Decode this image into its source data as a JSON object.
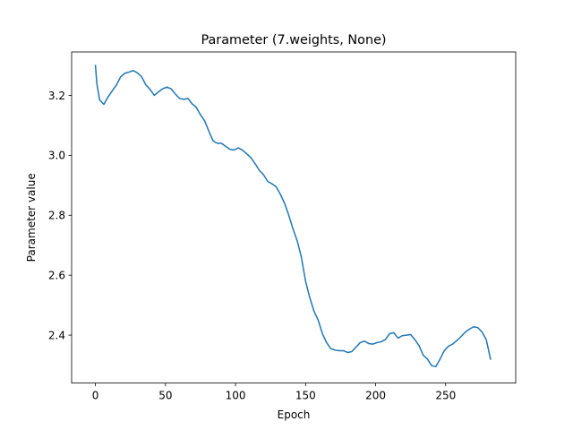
{
  "chart_data": {
    "type": "line",
    "title": "Parameter (7.weights, None)",
    "xlabel": "Epoch",
    "ylabel": "Parameter value",
    "xlim": [
      -17,
      300
    ],
    "ylim": [
      2.24,
      3.345
    ],
    "xticks": [
      0,
      50,
      100,
      150,
      200,
      250
    ],
    "yticks": [
      2.4,
      2.6,
      2.8,
      3.0,
      3.2
    ],
    "xtick_labels": [
      "0",
      "50",
      "100",
      "150",
      "200",
      "250"
    ],
    "ytick_labels": [
      "2.4",
      "2.6",
      "2.8",
      "3.0",
      "3.2"
    ],
    "grid": false,
    "series": [
      {
        "color": "#1f77b4",
        "x": [
          0,
          1,
          3,
          6,
          9,
          12,
          15,
          18,
          21,
          24,
          27,
          30,
          33,
          36,
          39,
          42,
          45,
          48,
          51,
          54,
          57,
          60,
          63,
          66,
          69,
          72,
          75,
          78,
          81,
          84,
          87,
          90,
          93,
          96,
          99,
          102,
          105,
          108,
          111,
          114,
          117,
          120,
          123,
          126,
          129,
          132,
          135,
          138,
          141,
          144,
          147,
          150,
          153,
          156,
          159,
          162,
          165,
          168,
          171,
          174,
          177,
          180,
          183,
          186,
          189,
          192,
          195,
          198,
          201,
          204,
          207,
          210,
          213,
          216,
          219,
          222,
          225,
          228,
          231,
          234,
          237,
          240,
          243,
          246,
          249,
          252,
          255,
          258,
          261,
          264,
          267,
          270,
          273,
          276,
          279,
          282
        ],
        "values": [
          3.3,
          3.24,
          3.185,
          3.17,
          3.195,
          3.215,
          3.235,
          3.262,
          3.274,
          3.278,
          3.283,
          3.275,
          3.262,
          3.235,
          3.22,
          3.2,
          3.212,
          3.222,
          3.228,
          3.222,
          3.205,
          3.19,
          3.187,
          3.19,
          3.172,
          3.16,
          3.135,
          3.115,
          3.08,
          3.048,
          3.04,
          3.04,
          3.03,
          3.02,
          3.018,
          3.025,
          3.017,
          3.005,
          2.992,
          2.972,
          2.95,
          2.935,
          2.913,
          2.905,
          2.895,
          2.87,
          2.84,
          2.8,
          2.755,
          2.715,
          2.66,
          2.58,
          2.525,
          2.48,
          2.45,
          2.405,
          2.375,
          2.355,
          2.35,
          2.348,
          2.348,
          2.342,
          2.345,
          2.36,
          2.375,
          2.38,
          2.372,
          2.37,
          2.375,
          2.378,
          2.385,
          2.405,
          2.408,
          2.39,
          2.398,
          2.4,
          2.402,
          2.385,
          2.365,
          2.333,
          2.32,
          2.298,
          2.295,
          2.32,
          2.348,
          2.363,
          2.37,
          2.382,
          2.395,
          2.41,
          2.42,
          2.428,
          2.425,
          2.41,
          2.385,
          2.32
        ]
      }
    ]
  }
}
